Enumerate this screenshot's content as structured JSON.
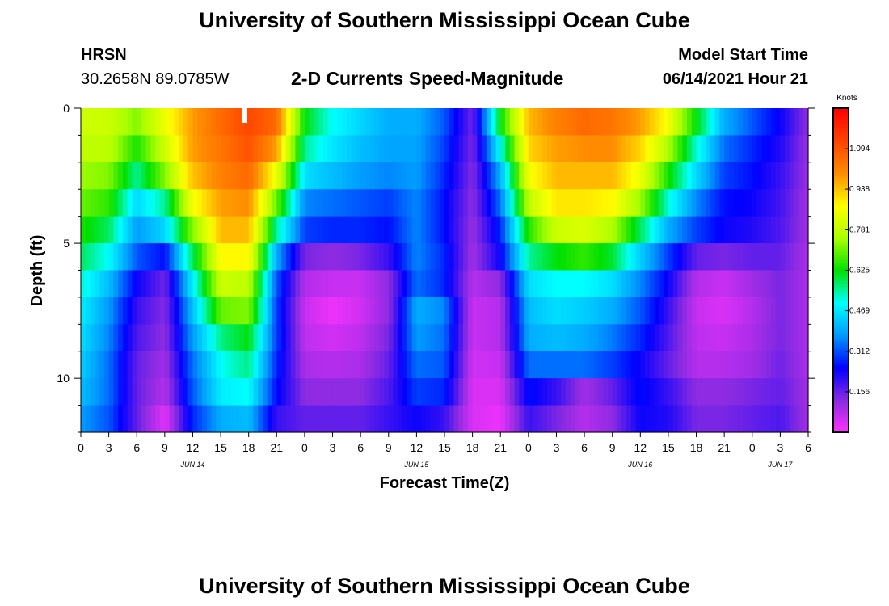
{
  "header": {
    "org_title": "University of Southern Mississippi Ocean Cube",
    "station": "HRSN",
    "coords": "30.2658N  89.0785W",
    "product": "2-D Currents Speed-Magnitude",
    "model_label": "Model Start Time",
    "model_time": "06/14/2021 Hour 21"
  },
  "footer": {
    "org_title": "University of Southern Mississippi Ocean Cube"
  },
  "colors": {
    "scale": [
      "#ff33ff",
      "#8a2be2",
      "#0000ff",
      "#0099ff",
      "#00ffff",
      "#00e000",
      "#aaff00",
      "#ffff00",
      "#ff8c00",
      "#ff4400",
      "#ff0000"
    ],
    "marker": "#ffffff"
  },
  "chart_data": {
    "type": "heatmap",
    "title": "2-D Currents Speed-Magnitude",
    "xlabel": "Forecast Time(Z)",
    "ylabel": "Depth (ft)",
    "colorbar_label": "Knots",
    "colorbar_range": [
      0.0,
      1.25
    ],
    "colorbar_ticks": [
      "0.156",
      "0.312",
      "0.469",
      "0.625",
      "0.781",
      "0.938",
      "1.094"
    ],
    "colorbar_tick_values": [
      0.156,
      0.312,
      0.469,
      0.625,
      0.781,
      0.938,
      1.094
    ],
    "x_range_hours": [
      0,
      78
    ],
    "x_ticks": [
      "0",
      "3",
      "6",
      "9",
      "12",
      "15",
      "18",
      "21",
      "0",
      "3",
      "6",
      "9",
      "12",
      "15",
      "18",
      "21",
      "0",
      "3",
      "6",
      "9",
      "12",
      "15",
      "18",
      "21",
      "0",
      "3",
      "6"
    ],
    "date_labels": [
      {
        "label": "JUN 14",
        "hour": 12
      },
      {
        "label": "JUN 15",
        "hour": 36
      },
      {
        "label": "JUN 16",
        "hour": 60
      },
      {
        "label": "JUN 17",
        "hour": 75
      }
    ],
    "y_range_ft": [
      0,
      12
    ],
    "y_major_ticks": [
      0,
      5,
      10
    ],
    "y_minor_tick_step": 1,
    "current_time_marker_hour": 17.5,
    "depth_levels_ft": [
      0.5,
      1.5,
      2.5,
      3.5,
      4.5,
      5.5,
      6.5,
      7.5,
      8.5,
      9.5,
      10.5,
      11.5
    ],
    "time_hours": [
      0,
      3,
      6,
      9,
      12,
      15,
      18,
      21,
      24,
      27,
      30,
      33,
      36,
      39,
      42,
      45,
      48,
      51,
      54,
      57,
      60,
      63,
      66,
      69,
      72,
      75,
      78
    ],
    "speed_knots": [
      [
        0.8,
        0.8,
        0.72,
        0.85,
        0.98,
        1.06,
        1.12,
        1.06,
        0.62,
        0.5,
        0.45,
        0.4,
        0.4,
        0.32,
        0.15,
        0.62,
        0.95,
        1.02,
        1.06,
        1.04,
        0.98,
        0.86,
        0.62,
        0.4,
        0.32,
        0.24,
        0.12
      ],
      [
        0.78,
        0.78,
        0.64,
        0.8,
        0.98,
        1.04,
        1.1,
        0.98,
        0.55,
        0.47,
        0.42,
        0.39,
        0.39,
        0.3,
        0.14,
        0.5,
        0.92,
        0.98,
        1.0,
        1.0,
        0.92,
        0.76,
        0.52,
        0.34,
        0.28,
        0.22,
        0.11
      ],
      [
        0.74,
        0.72,
        0.55,
        0.72,
        0.94,
        1.02,
        1.06,
        0.85,
        0.46,
        0.42,
        0.38,
        0.36,
        0.38,
        0.28,
        0.13,
        0.4,
        0.86,
        0.95,
        0.95,
        0.95,
        0.85,
        0.64,
        0.45,
        0.3,
        0.26,
        0.2,
        0.11
      ],
      [
        0.7,
        0.66,
        0.45,
        0.55,
        0.86,
        0.98,
        1.0,
        0.7,
        0.36,
        0.34,
        0.32,
        0.3,
        0.36,
        0.26,
        0.12,
        0.34,
        0.78,
        0.9,
        0.9,
        0.88,
        0.74,
        0.52,
        0.36,
        0.26,
        0.24,
        0.19,
        0.1
      ],
      [
        0.64,
        0.58,
        0.38,
        0.45,
        0.72,
        0.95,
        0.95,
        0.55,
        0.3,
        0.28,
        0.28,
        0.26,
        0.36,
        0.26,
        0.11,
        0.28,
        0.65,
        0.8,
        0.82,
        0.76,
        0.58,
        0.4,
        0.3,
        0.24,
        0.22,
        0.18,
        0.1
      ],
      [
        0.58,
        0.5,
        0.32,
        0.26,
        0.58,
        0.88,
        0.88,
        0.4,
        0.14,
        0.12,
        0.14,
        0.2,
        0.36,
        0.28,
        0.1,
        0.24,
        0.55,
        0.62,
        0.66,
        0.6,
        0.44,
        0.3,
        0.16,
        0.14,
        0.16,
        0.16,
        0.09
      ],
      [
        0.52,
        0.42,
        0.24,
        0.15,
        0.48,
        0.8,
        0.78,
        0.32,
        0.08,
        0.06,
        0.06,
        0.12,
        0.34,
        0.28,
        0.08,
        0.12,
        0.46,
        0.5,
        0.5,
        0.46,
        0.36,
        0.24,
        0.08,
        0.06,
        0.1,
        0.14,
        0.09
      ],
      [
        0.48,
        0.38,
        0.2,
        0.13,
        0.42,
        0.7,
        0.72,
        0.3,
        0.06,
        0.02,
        0.05,
        0.12,
        0.4,
        0.36,
        0.06,
        0.08,
        0.42,
        0.46,
        0.44,
        0.4,
        0.32,
        0.2,
        0.06,
        0.04,
        0.08,
        0.14,
        0.09
      ],
      [
        0.46,
        0.36,
        0.18,
        0.12,
        0.38,
        0.56,
        0.62,
        0.3,
        0.07,
        0.05,
        0.07,
        0.14,
        0.38,
        0.34,
        0.06,
        0.08,
        0.4,
        0.42,
        0.4,
        0.35,
        0.28,
        0.18,
        0.07,
        0.06,
        0.09,
        0.14,
        0.09
      ],
      [
        0.44,
        0.34,
        0.16,
        0.1,
        0.34,
        0.5,
        0.56,
        0.28,
        0.09,
        0.08,
        0.09,
        0.16,
        0.34,
        0.32,
        0.05,
        0.06,
        0.34,
        0.34,
        0.34,
        0.3,
        0.24,
        0.16,
        0.08,
        0.08,
        0.1,
        0.15,
        0.09
      ],
      [
        0.42,
        0.34,
        0.16,
        0.08,
        0.32,
        0.48,
        0.5,
        0.26,
        0.12,
        0.12,
        0.12,
        0.18,
        0.3,
        0.28,
        0.04,
        0.04,
        0.26,
        0.2,
        0.1,
        0.16,
        0.26,
        0.2,
        0.12,
        0.12,
        0.14,
        0.16,
        0.1
      ],
      [
        0.38,
        0.32,
        0.16,
        0.03,
        0.28,
        0.4,
        0.42,
        0.2,
        0.16,
        0.16,
        0.16,
        0.2,
        0.24,
        0.2,
        0.04,
        0.02,
        0.2,
        0.14,
        0.08,
        0.12,
        0.24,
        0.22,
        0.14,
        0.14,
        0.16,
        0.18,
        0.1
      ]
    ]
  }
}
